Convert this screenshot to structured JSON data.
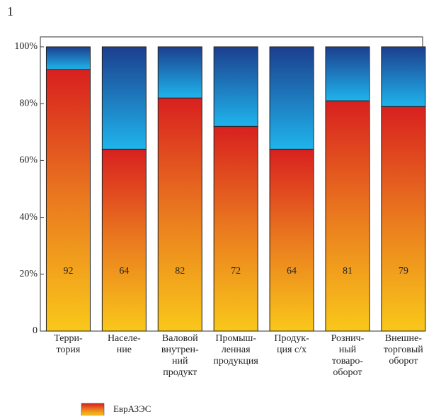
{
  "chart_data": {
    "type": "stacked_bar",
    "title": "1",
    "categories": [
      "Терри-\nтория",
      "Населе-\nние",
      "Валовой\nвнутрен-\nний\nпродукт",
      "Промыш-\nленная\nпродукция",
      "Продук-\nция с/х",
      "Рознич-\nный\nтоваро-\nоборот",
      "Внешне-\nторговый\nоборот"
    ],
    "series": [
      {
        "name": "ЕврАЗЭС",
        "color": "gradient-warm",
        "values": [
          92,
          64,
          82,
          72,
          64,
          81,
          79
        ]
      },
      {
        "color": "gradient-blue",
        "values": [
          8,
          36,
          18,
          28,
          36,
          19,
          21
        ]
      }
    ],
    "ylim": [
      0,
      100
    ],
    "yticks": [
      0,
      {
        "value": 20,
        "label": "20%"
      },
      {
        "value": 40,
        "label": "40%"
      },
      {
        "value": 60,
        "label": "60%"
      },
      {
        "value": 80,
        "label": "80%"
      },
      {
        "value": 100,
        "label": "100%"
      }
    ],
    "value_labels_series": 0
  }
}
